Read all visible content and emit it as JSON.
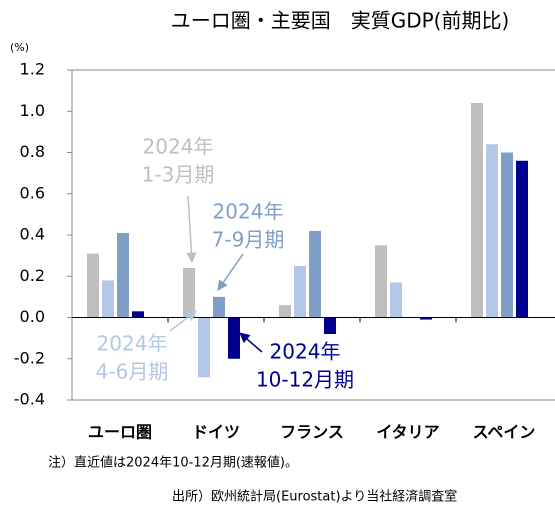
{
  "chart_data": {
    "type": "bar",
    "title": "ユーロ圏・主要国　実質GDP(前期比)",
    "y_unit": "(%)",
    "categories": [
      "ユーロ圏",
      "ドイツ",
      "フランス",
      "イタリア",
      "スペイン"
    ],
    "series": [
      {
        "name": [
          "2024年",
          "1-3月期"
        ],
        "color": "#bfbfbf",
        "values": [
          0.31,
          0.24,
          0.06,
          0.35,
          1.04
        ]
      },
      {
        "name": [
          "2024年",
          "4-6月期"
        ],
        "color": "#b4c7e7",
        "values": [
          0.18,
          -0.29,
          0.25,
          0.17,
          0.84
        ]
      },
      {
        "name": [
          "2024年",
          "7-9月期"
        ],
        "color": "#7f9fc8",
        "values": [
          0.41,
          0.1,
          0.42,
          0.0,
          0.8
        ]
      },
      {
        "name": [
          "2024年",
          "10-12月期"
        ],
        "color": "#00008f",
        "values": [
          0.03,
          -0.2,
          -0.08,
          -0.01,
          0.76
        ]
      }
    ],
    "ylim": [
      -0.4,
      1.2
    ],
    "yticks": [
      {
        "value": -0.4,
        "label": "-0.4"
      },
      {
        "value": -0.2,
        "label": "-0.2"
      },
      {
        "value": 0,
        "label": "0.0"
      },
      {
        "value": 0.2,
        "label": "0.2"
      },
      {
        "value": 0.4,
        "label": "0.4"
      },
      {
        "value": 0.6,
        "label": "0.6"
      },
      {
        "value": 0.8,
        "label": "0.8"
      },
      {
        "value": 1.0,
        "label": "1.0"
      },
      {
        "value": 1.2,
        "label": "1.2"
      }
    ],
    "note": "注）直近値は2024年10-12月期(速報値)。",
    "source": "出所）欧州統計局(Eurostat)より当社経済調査室"
  }
}
